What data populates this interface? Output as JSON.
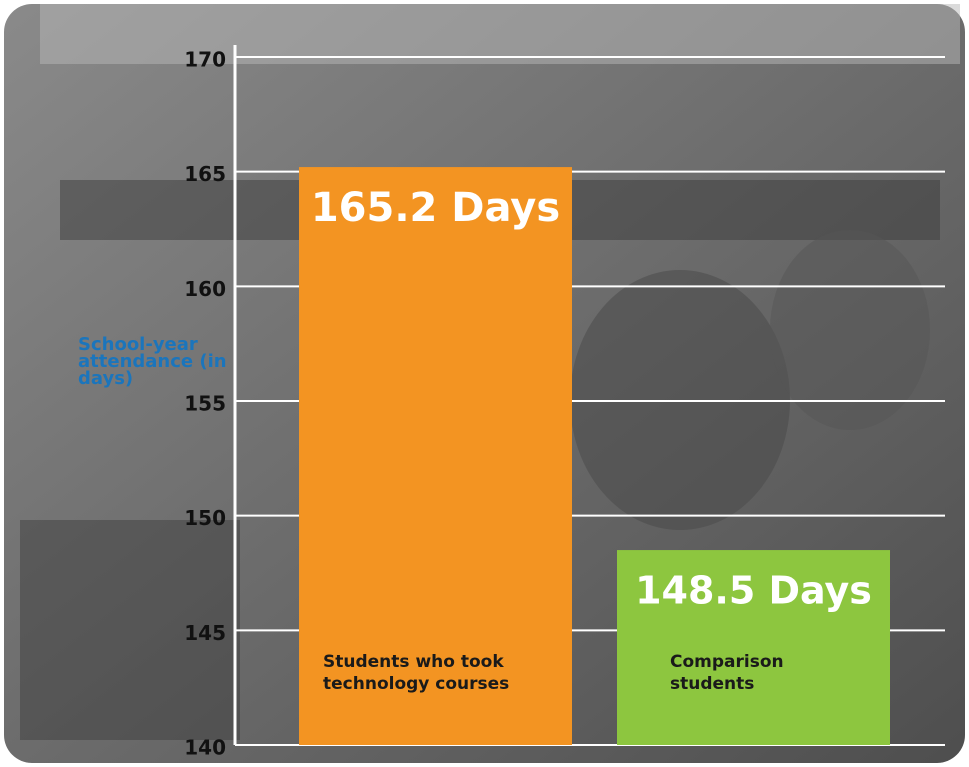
{
  "chart_data": {
    "type": "bar",
    "y_label": "School-year attendance (in days)",
    "categories": [
      "Students who took technology courses",
      "Comparison students"
    ],
    "values": [
      165.2,
      148.5
    ],
    "value_labels": [
      "165.2 Days",
      "148.5 Days"
    ],
    "colors": [
      "#f39422",
      "#8dc63f"
    ],
    "ylim": [
      140,
      170
    ],
    "yticks": [
      140,
      145,
      150,
      155,
      160,
      165,
      170
    ],
    "grid": true
  }
}
